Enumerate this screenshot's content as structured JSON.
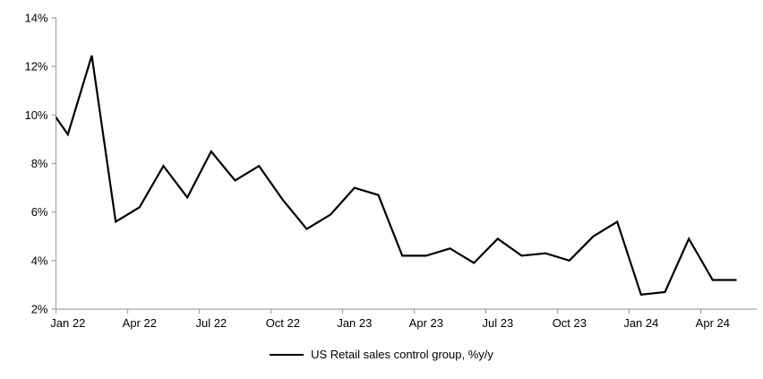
{
  "chart_data": {
    "type": "line",
    "title": "",
    "series_name": "US Retail sales control group, %y/y",
    "x": [
      "Dec 21",
      "Jan 22",
      "Feb 22",
      "Mar 22",
      "Apr 22",
      "May 22",
      "Jun 22",
      "Jul 22",
      "Aug 22",
      "Sep 22",
      "Oct 22",
      "Nov 22",
      "Dec 22",
      "Jan 23",
      "Feb 23",
      "Mar 23",
      "Apr 23",
      "May 23",
      "Jun 23",
      "Jul 23",
      "Aug 23",
      "Sep 23",
      "Oct 23",
      "Nov 23",
      "Dec 23",
      "Jan 24",
      "Feb 24",
      "Mar 24",
      "Apr 24",
      "May 24"
    ],
    "values": [
      10.6,
      9.2,
      12.45,
      5.6,
      6.2,
      7.9,
      6.6,
      8.5,
      7.3,
      7.9,
      6.5,
      5.3,
      5.9,
      7.0,
      6.7,
      4.2,
      4.2,
      4.5,
      3.9,
      4.9,
      4.2,
      4.3,
      4.0,
      5.0,
      5.6,
      2.6,
      2.7,
      4.9,
      3.2,
      3.2
    ],
    "first_point_clipped_at_left_axis": true,
    "xtick_labels": [
      "Jan 22",
      "Apr 22",
      "Jul 22",
      "Oct 22",
      "Jan 23",
      "Apr 23",
      "Jul 23",
      "Oct 23",
      "Jan 24",
      "Apr 24"
    ],
    "xtick_month_interval": 3,
    "ytick_labels": [
      "2%",
      "4%",
      "6%",
      "8%",
      "10%",
      "12%",
      "14%"
    ],
    "ylim": [
      2,
      14
    ],
    "ytick_step": 2,
    "grid": "off",
    "legend_position": "bottom-center",
    "line_color": "#000000",
    "axis_color": "#a6a6a6",
    "text_color": "#000000"
  },
  "legend": {
    "label": "US Retail sales control group, %y/y"
  }
}
